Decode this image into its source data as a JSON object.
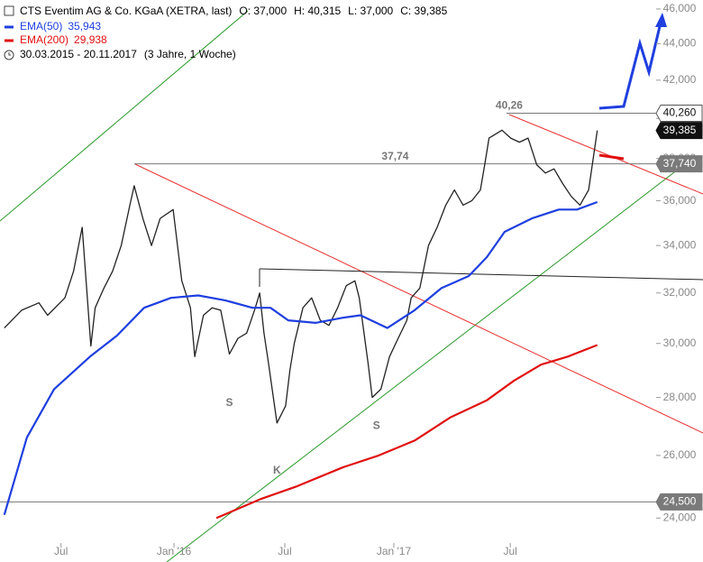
{
  "chart_data": {
    "type": "line",
    "title": "CTS Eventim AG & Co. KGaA (XETRA, last)",
    "ohlc": [
      "O: 37,000",
      "H: 40,315",
      "L: 37,000",
      "C: 39,385"
    ],
    "period": "30.03.2015 - 20.11.2017",
    "span": "(3 Jahre, 1 Woche)",
    "xlim": [
      -1,
      150.6
    ],
    "xticks": [
      {
        "value": 13.1,
        "label": "Jul"
      },
      {
        "value": 39.2,
        "label": "Jan '16"
      },
      {
        "value": 64.8,
        "label": "Jul"
      },
      {
        "value": 90,
        "label": "Jan '17"
      },
      {
        "value": 116.9,
        "label": "Jul"
      }
    ],
    "ylim": [
      23.3,
      46.53
    ],
    "log_scale": true,
    "yticks": [
      {
        "value": 24,
        "label": "24,000"
      },
      {
        "value": 26,
        "label": "26,000"
      },
      {
        "value": 28,
        "label": "28,000"
      },
      {
        "value": 30,
        "label": "30,000"
      },
      {
        "value": 32,
        "label": "32,000"
      },
      {
        "value": 34,
        "label": "34,000"
      },
      {
        "value": 36,
        "label": "36,000"
      },
      {
        "value": 38,
        "label": "38,000"
      },
      {
        "value": 40,
        "label": "40,000"
      },
      {
        "value": 42,
        "label": "42,000"
      },
      {
        "value": 44,
        "label": "44,000"
      },
      {
        "value": 46,
        "label": "46,000"
      }
    ],
    "price": {
      "color": "#222222",
      "x": [
        0,
        4,
        8,
        10,
        14,
        16,
        18,
        20,
        21,
        23,
        25,
        27,
        29,
        30,
        32,
        34,
        36,
        39,
        41,
        43,
        44,
        46,
        48,
        50,
        52,
        54,
        56,
        58,
        59,
        60,
        61,
        63,
        65,
        66,
        67,
        69,
        71,
        73,
        75,
        77,
        79,
        81,
        82,
        84,
        85,
        87,
        89,
        91,
        93,
        94,
        96,
        98,
        100,
        102,
        104,
        106,
        108,
        110,
        111,
        112,
        115,
        117,
        119,
        121,
        123,
        125,
        127,
        129,
        131,
        133,
        135,
        137
      ],
      "values": [
        30.6,
        31.3,
        31.6,
        31.1,
        31.8,
        32.9,
        34.8,
        29.9,
        31.4,
        32.2,
        32.9,
        34.0,
        35.8,
        36.7,
        35.2,
        34.0,
        35.2,
        35.6,
        32.5,
        31.4,
        29.5,
        31.1,
        31.4,
        31.3,
        29.6,
        30.2,
        30.4,
        31.4,
        32.0,
        30.4,
        29.3,
        27.1,
        27.7,
        29.0,
        30.0,
        31.4,
        31.8,
        30.9,
        30.7,
        31.4,
        32.3,
        32.5,
        31.8,
        29.3,
        28.0,
        28.3,
        29.5,
        30.2,
        30.9,
        31.8,
        32.2,
        34.0,
        34.8,
        35.8,
        36.5,
        35.8,
        36.0,
        36.5,
        37.7,
        39.0,
        39.4,
        39.0,
        38.8,
        39.0,
        37.7,
        37.3,
        37.5,
        36.8,
        36.2,
        35.8,
        36.5,
        39.385
      ]
    },
    "series": [
      {
        "name": "EMA(50)",
        "legend_label": "35,943",
        "color": "#1f3fdf",
        "x": [
          0,
          5.2,
          11.5,
          19.8,
          26,
          32.3,
          38.5,
          44.8,
          51,
          57.3,
          61.5,
          65.6,
          71.9,
          78.1,
          82.3,
          88.5,
          94.8,
          101,
          107.3,
          111.5,
          115.6,
          121.9,
          128.1,
          132.3,
          137
        ],
        "values": [
          24.1,
          26.6,
          28.3,
          29.5,
          30.3,
          31.4,
          31.8,
          31.9,
          31.7,
          31.4,
          31.4,
          30.9,
          30.8,
          31.0,
          31.1,
          30.6,
          31.3,
          32.2,
          32.7,
          33.5,
          34.6,
          35.2,
          35.6,
          35.6,
          35.943
        ]
      },
      {
        "name": "EMA(200)",
        "legend_label": "29,938",
        "color": "#e01010",
        "x": [
          49,
          59.4,
          67.7,
          78.1,
          86.5,
          94.8,
          103.1,
          111.5,
          117.7,
          124,
          130.2,
          137
        ],
        "values": [
          24.0,
          24.6,
          25.0,
          25.6,
          26.0,
          26.5,
          27.3,
          27.9,
          28.6,
          29.2,
          29.5,
          29.938
        ]
      }
    ],
    "levels": [
      {
        "value": 40.26,
        "label": "40,260",
        "box": "outline",
        "from": 116,
        "note": "40,26"
      },
      {
        "value": 39.385,
        "label": "39,385",
        "box": "dark"
      },
      {
        "value": 37.74,
        "label": "37,740",
        "box": "gray",
        "from": 30,
        "note": "37,74"
      },
      {
        "value": 24.5,
        "label": "24,500",
        "box": "gray",
        "from": -1
      }
    ],
    "pivots": [
      {
        "text": "S",
        "x": 52,
        "y": 27.8
      },
      {
        "text": "K",
        "x": 63,
        "y": 25.5
      },
      {
        "text": "S",
        "x": 86,
        "y": 27.0
      }
    ]
  }
}
